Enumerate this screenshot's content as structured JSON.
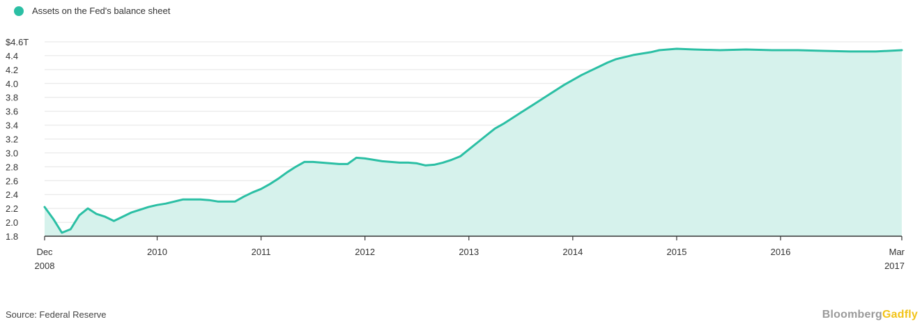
{
  "legend": {
    "label": "Assets on the Fed's balance sheet",
    "color": "#2bbfa4"
  },
  "source": "Source: Federal Reserve",
  "brand": {
    "part1": "Bloomberg",
    "part2": "Gadfly",
    "color1": "#9a9a9a",
    "color2": "#f2c318"
  },
  "colors": {
    "line": "#2bbfa4",
    "fill": "#d6f2ec",
    "grid": "#e4e4e4",
    "axis": "#333333"
  },
  "chart_data": {
    "type": "area",
    "title": "",
    "xlabel": "",
    "ylabel": "",
    "ylim": [
      1.8,
      4.6
    ],
    "y_ticks": [
      "$4.6T",
      "4.4",
      "4.2",
      "4.0",
      "3.8",
      "3.6",
      "3.4",
      "3.2",
      "3.0",
      "2.8",
      "2.6",
      "2.4",
      "2.2",
      "2.0",
      "1.8"
    ],
    "y_tick_values": [
      4.6,
      4.4,
      4.2,
      4.0,
      3.8,
      3.6,
      3.4,
      3.2,
      3.0,
      2.8,
      2.6,
      2.4,
      2.2,
      2.0,
      1.8
    ],
    "x_ticks": [
      {
        "label": "Dec",
        "sub": "2008",
        "x": "2008-12"
      },
      {
        "label": "2010",
        "sub": "",
        "x": "2010-01"
      },
      {
        "label": "2011",
        "sub": "",
        "x": "2011-01"
      },
      {
        "label": "2012",
        "sub": "",
        "x": "2012-01"
      },
      {
        "label": "2013",
        "sub": "",
        "x": "2013-01"
      },
      {
        "label": "2014",
        "sub": "",
        "x": "2014-01"
      },
      {
        "label": "2015",
        "sub": "",
        "x": "2015-01"
      },
      {
        "label": "2016",
        "sub": "",
        "x": "2016-01"
      },
      {
        "label": "Mar",
        "sub": "2017",
        "x": "2017-03"
      }
    ],
    "grid": true,
    "legend_position": "top-left",
    "series": [
      {
        "name": "Assets on the Fed's balance sheet",
        "x": [
          "2008-12",
          "2009-01",
          "2009-02",
          "2009-03",
          "2009-04",
          "2009-05",
          "2009-06",
          "2009-07",
          "2009-08",
          "2009-09",
          "2009-10",
          "2009-11",
          "2009-12",
          "2010-01",
          "2010-02",
          "2010-03",
          "2010-04",
          "2010-05",
          "2010-06",
          "2010-07",
          "2010-08",
          "2010-09",
          "2010-10",
          "2010-11",
          "2010-12",
          "2011-01",
          "2011-02",
          "2011-03",
          "2011-04",
          "2011-05",
          "2011-06",
          "2011-07",
          "2011-08",
          "2011-09",
          "2011-10",
          "2011-11",
          "2011-12",
          "2012-01",
          "2012-02",
          "2012-03",
          "2012-04",
          "2012-05",
          "2012-06",
          "2012-07",
          "2012-08",
          "2012-09",
          "2012-10",
          "2012-11",
          "2012-12",
          "2013-01",
          "2013-02",
          "2013-03",
          "2013-04",
          "2013-05",
          "2013-06",
          "2013-07",
          "2013-08",
          "2013-09",
          "2013-10",
          "2013-11",
          "2013-12",
          "2014-01",
          "2014-02",
          "2014-03",
          "2014-04",
          "2014-05",
          "2014-06",
          "2014-07",
          "2014-08",
          "2014-09",
          "2014-10",
          "2014-11",
          "2014-12",
          "2015-01",
          "2015-03",
          "2015-06",
          "2015-09",
          "2015-12",
          "2016-03",
          "2016-06",
          "2016-09",
          "2016-12",
          "2017-03"
        ],
        "y": [
          2.22,
          2.05,
          1.85,
          1.9,
          2.1,
          2.2,
          2.12,
          2.08,
          2.02,
          2.08,
          2.14,
          2.18,
          2.22,
          2.25,
          2.27,
          2.3,
          2.33,
          2.33,
          2.33,
          2.32,
          2.3,
          2.3,
          2.3,
          2.37,
          2.43,
          2.48,
          2.55,
          2.63,
          2.72,
          2.8,
          2.87,
          2.87,
          2.86,
          2.85,
          2.84,
          2.84,
          2.93,
          2.92,
          2.9,
          2.88,
          2.87,
          2.86,
          2.86,
          2.85,
          2.82,
          2.83,
          2.86,
          2.9,
          2.95,
          3.05,
          3.15,
          3.25,
          3.35,
          3.42,
          3.5,
          3.58,
          3.66,
          3.74,
          3.82,
          3.9,
          3.98,
          4.05,
          4.12,
          4.18,
          4.24,
          4.3,
          4.35,
          4.38,
          4.41,
          4.43,
          4.45,
          4.48,
          4.49,
          4.5,
          4.49,
          4.48,
          4.49,
          4.48,
          4.48,
          4.47,
          4.46,
          4.46,
          4.48
        ]
      }
    ]
  }
}
